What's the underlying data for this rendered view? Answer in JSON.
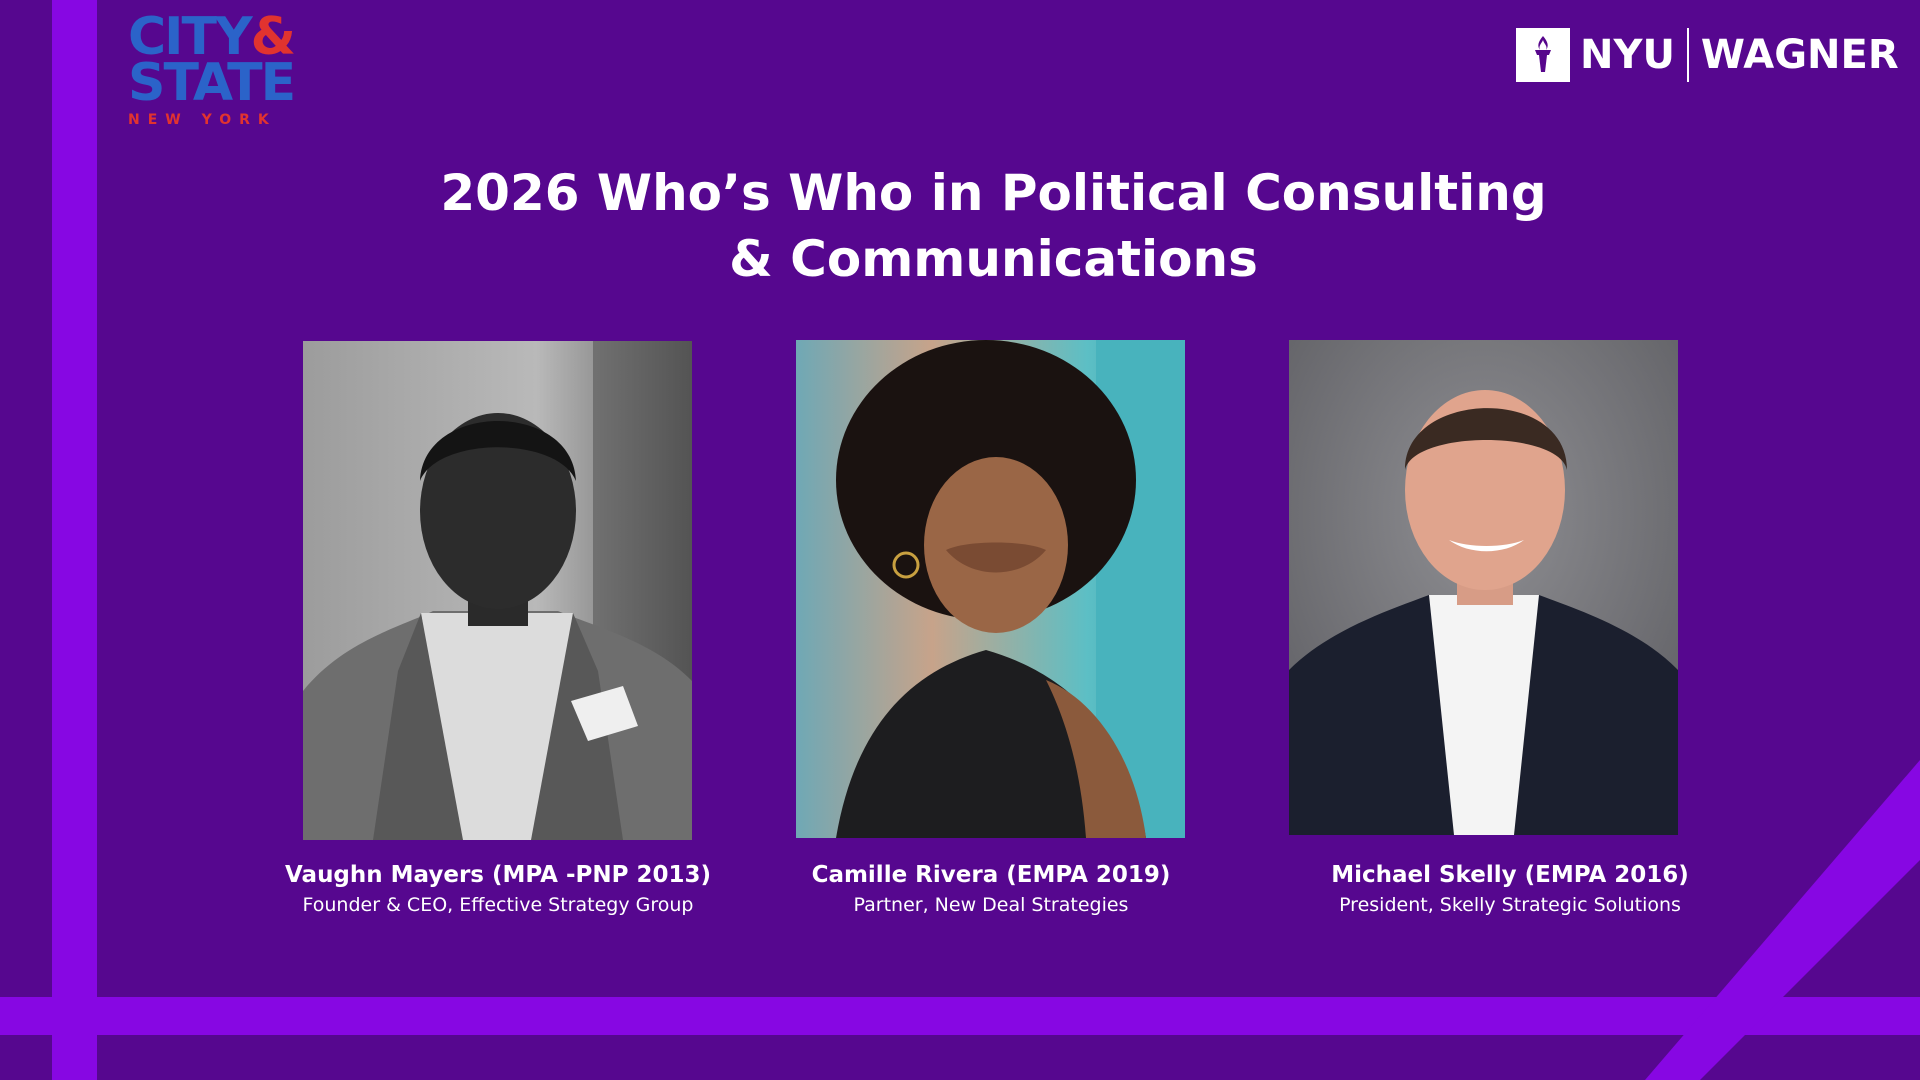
{
  "logos": {
    "city_state": {
      "line1_word": "CITY",
      "line1_amp": "&",
      "line2": "STATE",
      "sub": "NEW YORK"
    },
    "nyu_wagner": {
      "left": "NYU",
      "right": "WAGNER",
      "icon": "torch-icon"
    }
  },
  "title": {
    "line1": "2026 Who’s Who in Political Consulting",
    "line2": "& Communications"
  },
  "honorees": [
    {
      "name": "Vaughn Mayers (MPA -PNP 2013)",
      "role": "Founder & CEO, Effective Strategy Group"
    },
    {
      "name": "Camille Rivera (EMPA 2019)",
      "role": "Partner, New Deal Strategies"
    },
    {
      "name": "Michael Skelly (EMPA 2016)",
      "role": "President, Skelly Strategic Solutions"
    }
  ],
  "colors": {
    "background": "#56078f",
    "stripe": "#8707e3",
    "city_state_blue": "#2b63c9",
    "city_state_red": "#e1332f",
    "text": "#ffffff"
  }
}
